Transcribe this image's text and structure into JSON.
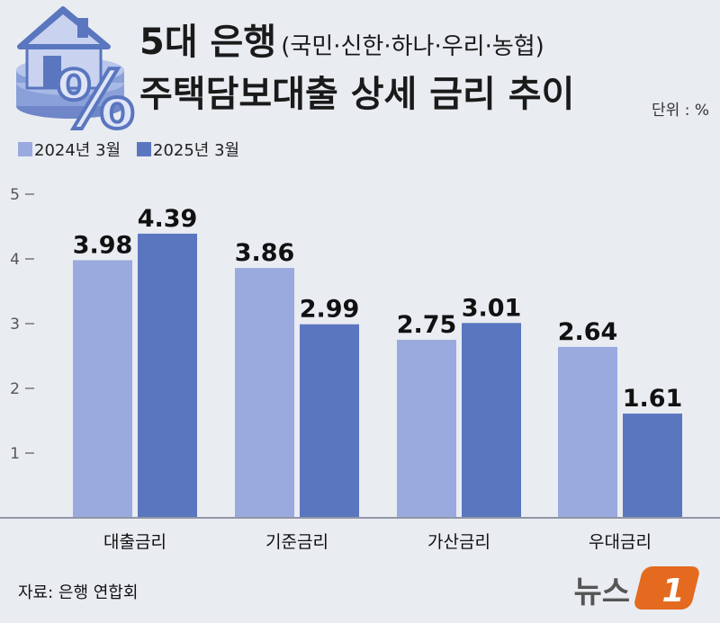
{
  "header": {
    "title_main": "5대 은행",
    "title_paren": "(국민·신한·하나·우리·농협)",
    "title_line2": "주택담보대출 상세 금리 추이",
    "unit": "단위 : %"
  },
  "legend": {
    "items": [
      {
        "label": "2024년 3월",
        "color": "#9aaadf"
      },
      {
        "label": "2025년 3월",
        "color": "#5a76bf"
      }
    ]
  },
  "chart_data": {
    "type": "bar",
    "categories": [
      "대출금리",
      "기준금리",
      "가산금리",
      "우대금리"
    ],
    "series": [
      {
        "name": "2024년 3월",
        "values": [
          3.98,
          3.86,
          2.75,
          2.64
        ],
        "color": "#9aaadf"
      },
      {
        "name": "2025년 3월",
        "values": [
          4.39,
          2.99,
          3.01,
          1.61
        ],
        "color": "#5a76bf"
      }
    ],
    "value_labels": [
      [
        "3.98",
        "3.86",
        "2.75",
        "2.64"
      ],
      [
        "4.39",
        "2.99",
        "3.01",
        "1.61"
      ]
    ],
    "yticks": [
      "1",
      "2",
      "3",
      "4",
      "5"
    ],
    "ylim": [
      0,
      5
    ],
    "grid": false,
    "legend_position": "top-left"
  },
  "footer": {
    "source": "자료: 은행 연합회",
    "logo_text": "뉴스",
    "logo_mark": "1"
  }
}
